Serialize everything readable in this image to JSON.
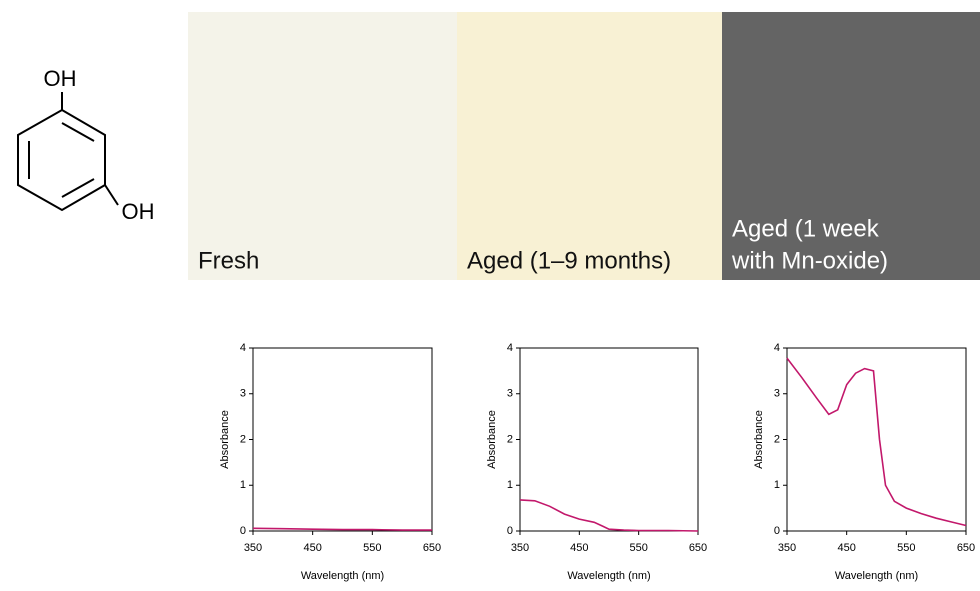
{
  "structure": {
    "labels": [
      "OH",
      "OH"
    ]
  },
  "panels": [
    {
      "lines": [
        "Fresh"
      ],
      "color": "#f4f3e9",
      "text_color": "#111111"
    },
    {
      "lines": [
        "Aged (1–9 months)"
      ],
      "color": "#f8f1d4",
      "text_color": "#111111"
    },
    {
      "lines": [
        "Aged (1 week",
        "with Mn-oxide)"
      ],
      "color": "#646464",
      "text_color": "#ffffff"
    }
  ],
  "chart_data": [
    {
      "type": "line",
      "x_label": "Wavelength (nm)",
      "y_label": "Absorbance",
      "xlim": [
        350,
        650
      ],
      "ylim": [
        0,
        4
      ],
      "xticks": [
        350,
        450,
        550,
        650
      ],
      "yticks": [
        0,
        1,
        2,
        3,
        4
      ],
      "series": [
        {
          "color": "#c2186b",
          "x": [
            350,
            400,
            450,
            500,
            550,
            600,
            650
          ],
          "values": [
            0.06,
            0.05,
            0.04,
            0.03,
            0.03,
            0.02,
            0.02
          ]
        }
      ]
    },
    {
      "type": "line",
      "x_label": "Wavelength (nm)",
      "y_label": "Absorbance",
      "xlim": [
        350,
        650
      ],
      "ylim": [
        0,
        4
      ],
      "xticks": [
        350,
        450,
        550,
        650
      ],
      "yticks": [
        0,
        1,
        2,
        3,
        4
      ],
      "series": [
        {
          "color": "#c2186b",
          "x": [
            350,
            375,
            400,
            425,
            450,
            475,
            490,
            500,
            525,
            550,
            600,
            650
          ],
          "values": [
            0.68,
            0.66,
            0.54,
            0.37,
            0.26,
            0.19,
            0.1,
            0.04,
            0.02,
            0.01,
            0.01,
            0.0
          ]
        }
      ]
    },
    {
      "type": "line",
      "x_label": "Wavelength (nm)",
      "y_label": "Absorbance",
      "xlim": [
        350,
        650
      ],
      "ylim": [
        0,
        4
      ],
      "xticks": [
        350,
        450,
        550,
        650
      ],
      "yticks": [
        0,
        1,
        2,
        3,
        4
      ],
      "series": [
        {
          "color": "#c2186b",
          "x": [
            350,
            375,
            400,
            420,
            435,
            450,
            465,
            480,
            495,
            505,
            515,
            530,
            550,
            575,
            600,
            625,
            650
          ],
          "values": [
            3.78,
            3.35,
            2.9,
            2.55,
            2.65,
            3.2,
            3.45,
            3.55,
            3.5,
            2.0,
            1.0,
            0.65,
            0.5,
            0.38,
            0.28,
            0.2,
            0.12
          ]
        }
      ]
    }
  ]
}
